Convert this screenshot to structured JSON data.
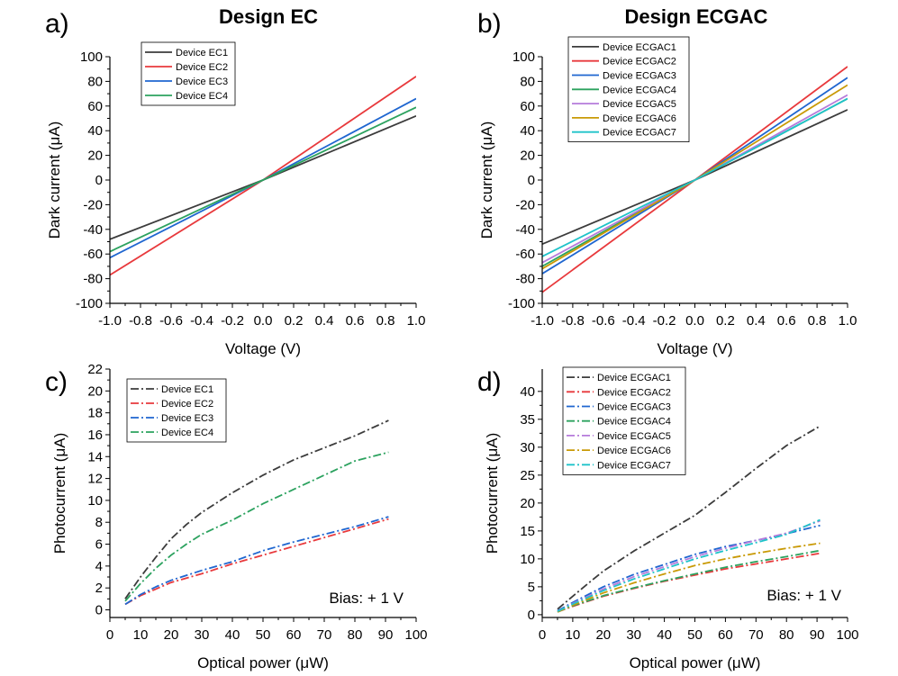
{
  "chart_data": [
    {
      "id": "a",
      "type": "line",
      "panel_label": "a)",
      "title": "Design EC",
      "xlabel": "Voltage (V)",
      "ylabel": "Dark current (μA)",
      "xlim": [
        -1.0,
        1.0
      ],
      "ylim": [
        -100,
        100
      ],
      "xticks": [
        -1.0,
        -0.8,
        -0.6,
        -0.4,
        -0.2,
        0.0,
        0.2,
        0.4,
        0.6,
        0.8,
        1.0
      ],
      "xtick_labels": [
        "-1.0",
        "-0.8",
        "-0.6",
        "-0.4",
        "-0.2",
        "0.0",
        "0.2",
        "0.4",
        "0.6",
        "0.8",
        "1.0"
      ],
      "yticks": [
        -100,
        -80,
        -60,
        -40,
        -20,
        0,
        20,
        40,
        60,
        80,
        100
      ],
      "ytick_labels": [
        "-100",
        "-80",
        "-60",
        "-40",
        "-20",
        "0",
        "20",
        "40",
        "60",
        "80",
        "100"
      ],
      "legend_position": "top-left",
      "series": [
        {
          "name": "Device EC1",
          "color": "#3c3c3c",
          "dash": "solid",
          "x": [
            -1.0,
            0.0,
            1.0
          ],
          "y": [
            -48,
            0,
            52
          ]
        },
        {
          "name": "Device EC2",
          "color": "#e8393c",
          "dash": "solid",
          "x": [
            -1.0,
            0.0,
            1.0
          ],
          "y": [
            -77,
            0,
            84
          ]
        },
        {
          "name": "Device EC3",
          "color": "#1f66d0",
          "dash": "solid",
          "x": [
            -1.0,
            0.0,
            1.0
          ],
          "y": [
            -63,
            0,
            66
          ]
        },
        {
          "name": "Device EC4",
          "color": "#2ca25f",
          "dash": "solid",
          "x": [
            -1.0,
            0.0,
            1.0
          ],
          "y": [
            -58,
            0,
            59
          ]
        }
      ]
    },
    {
      "id": "b",
      "type": "line",
      "panel_label": "b)",
      "title": "Design ECGAC",
      "xlabel": "Voltage (V)",
      "ylabel": "Dark current (μA)",
      "xlim": [
        -1.0,
        1.0
      ],
      "ylim": [
        -100,
        100
      ],
      "xticks": [
        -1.0,
        -0.8,
        -0.6,
        -0.4,
        -0.2,
        0.0,
        0.2,
        0.4,
        0.6,
        0.8,
        1.0
      ],
      "xtick_labels": [
        "-1.0",
        "-0.8",
        "-0.6",
        "-0.4",
        "-0.2",
        "0.0",
        "0.2",
        "0.4",
        "0.6",
        "0.8",
        "1.0"
      ],
      "yticks": [
        -100,
        -80,
        -60,
        -40,
        -20,
        0,
        20,
        40,
        60,
        80,
        100
      ],
      "ytick_labels": [
        "-100",
        "-80",
        "-60",
        "-40",
        "-20",
        "0",
        "20",
        "40",
        "60",
        "80",
        "100"
      ],
      "legend_position": "top-left",
      "series": [
        {
          "name": "Device ECGAC1",
          "color": "#3c3c3c",
          "dash": "solid",
          "x": [
            -1.0,
            0.0,
            1.0
          ],
          "y": [
            -52,
            0,
            57
          ]
        },
        {
          "name": "Device ECGAC2",
          "color": "#e8393c",
          "dash": "solid",
          "x": [
            -1.0,
            0.0,
            1.0
          ],
          "y": [
            -91,
            0,
            92
          ]
        },
        {
          "name": "Device ECGAC3",
          "color": "#1f66d0",
          "dash": "solid",
          "x": [
            -1.0,
            0.0,
            1.0
          ],
          "y": [
            -76,
            0,
            83
          ]
        },
        {
          "name": "Device ECGAC4",
          "color": "#2ca25f",
          "dash": "solid",
          "x": [
            -1.0,
            0.0,
            1.0
          ],
          "y": [
            -70,
            0,
            66
          ]
        },
        {
          "name": "Device ECGAC5",
          "color": "#b57bdb",
          "dash": "solid",
          "x": [
            -1.0,
            0.0,
            1.0
          ],
          "y": [
            -67,
            0,
            69
          ]
        },
        {
          "name": "Device ECGAC6",
          "color": "#c99a06",
          "dash": "solid",
          "x": [
            -1.0,
            0.0,
            1.0
          ],
          "y": [
            -72,
            0,
            77
          ]
        },
        {
          "name": "Device ECGAC7",
          "color": "#1fc3c9",
          "dash": "solid",
          "x": [
            -1.0,
            0.0,
            1.0
          ],
          "y": [
            -62,
            0,
            66
          ]
        }
      ]
    },
    {
      "id": "c",
      "type": "line",
      "panel_label": "c)",
      "title": "",
      "xlabel": "Optical power (μW)",
      "ylabel": "Photocurrent (μA)",
      "xlim": [
        0,
        100
      ],
      "ylim": [
        -0.7,
        22
      ],
      "xticks": [
        0,
        10,
        20,
        30,
        40,
        50,
        60,
        70,
        80,
        90,
        100
      ],
      "xtick_labels": [
        "0",
        "10",
        "20",
        "30",
        "40",
        "50",
        "60",
        "70",
        "80",
        "90",
        "100"
      ],
      "yticks": [
        0,
        2,
        4,
        6,
        8,
        10,
        12,
        14,
        16,
        18,
        20,
        22
      ],
      "ytick_labels": [
        "0",
        "2",
        "4",
        "6",
        "8",
        "10",
        "12",
        "14",
        "16",
        "18",
        "20",
        "22"
      ],
      "legend_position": "top-left",
      "annotation": "Bias: + 1 V",
      "series": [
        {
          "name": "Device EC1",
          "color": "#3c3c3c",
          "dash": "dashdot",
          "x": [
            5,
            10,
            15,
            20,
            25,
            30,
            40,
            50,
            60,
            70,
            80,
            91
          ],
          "y": [
            1.0,
            3.0,
            4.8,
            6.5,
            7.8,
            8.9,
            10.7,
            12.3,
            13.7,
            14.8,
            15.9,
            17.3
          ]
        },
        {
          "name": "Device EC2",
          "color": "#e8393c",
          "dash": "dashdot",
          "x": [
            5,
            10,
            15,
            20,
            30,
            40,
            50,
            60,
            70,
            80,
            91
          ],
          "y": [
            0.5,
            1.3,
            1.9,
            2.5,
            3.3,
            4.2,
            5.0,
            5.8,
            6.6,
            7.4,
            8.3
          ]
        },
        {
          "name": "Device EC3",
          "color": "#1f66d0",
          "dash": "dashdot",
          "x": [
            5,
            10,
            15,
            20,
            30,
            40,
            50,
            60,
            70,
            80,
            91
          ],
          "y": [
            0.5,
            1.4,
            2.1,
            2.7,
            3.6,
            4.4,
            5.4,
            6.2,
            6.9,
            7.6,
            8.5
          ]
        },
        {
          "name": "Device EC4",
          "color": "#2ca25f",
          "dash": "dashdot",
          "x": [
            5,
            10,
            15,
            20,
            25,
            30,
            40,
            50,
            60,
            70,
            80,
            91
          ],
          "y": [
            0.8,
            2.4,
            3.8,
            5.0,
            6.0,
            6.9,
            8.2,
            9.7,
            11.0,
            12.3,
            13.6,
            14.4
          ]
        }
      ]
    },
    {
      "id": "d",
      "type": "line",
      "panel_label": "d)",
      "title": "",
      "xlabel": "Optical power (μW)",
      "ylabel": "Photocurrent (μA)",
      "xlim": [
        0,
        100
      ],
      "ylim": [
        -0.5,
        44
      ],
      "xticks": [
        0,
        10,
        20,
        30,
        40,
        50,
        60,
        70,
        80,
        90,
        100
      ],
      "xtick_labels": [
        "0",
        "10",
        "20",
        "30",
        "40",
        "50",
        "60",
        "70",
        "80",
        "90",
        "100"
      ],
      "yticks": [
        0,
        5,
        10,
        15,
        20,
        25,
        30,
        35,
        40
      ],
      "ytick_labels": [
        "0",
        "5",
        "10",
        "15",
        "20",
        "25",
        "30",
        "35",
        "40"
      ],
      "legend_position": "top-left",
      "annotation": "Bias: + 1 V",
      "series": [
        {
          "name": "Device ECGAC1",
          "color": "#3c3c3c",
          "dash": "dashdot",
          "x": [
            5,
            10,
            15,
            20,
            30,
            40,
            50,
            60,
            70,
            80,
            91
          ],
          "y": [
            1.0,
            3.3,
            5.6,
            7.8,
            11.4,
            14.6,
            17.8,
            21.9,
            26.2,
            30.3,
            33.8
          ]
        },
        {
          "name": "Device ECGAC2",
          "color": "#e8393c",
          "dash": "dashdot",
          "x": [
            5,
            10,
            20,
            30,
            40,
            50,
            60,
            70,
            80,
            91
          ],
          "y": [
            0.5,
            1.5,
            3.3,
            4.7,
            6.0,
            7.1,
            8.2,
            9.1,
            10.0,
            11.0
          ]
        },
        {
          "name": "Device ECGAC3",
          "color": "#1f66d0",
          "dash": "dashdot",
          "x": [
            5,
            10,
            20,
            30,
            40,
            50,
            60,
            70,
            80,
            91
          ],
          "y": [
            0.7,
            2.2,
            5.0,
            7.2,
            9.0,
            10.8,
            12.2,
            13.3,
            14.5,
            16.0
          ]
        },
        {
          "name": "Device ECGAC4",
          "color": "#2ca25f",
          "dash": "dashdot",
          "x": [
            5,
            10,
            20,
            30,
            40,
            50,
            60,
            70,
            80,
            91
          ],
          "y": [
            0.5,
            1.6,
            3.4,
            4.8,
            6.1,
            7.3,
            8.5,
            9.5,
            10.4,
            11.5
          ]
        },
        {
          "name": "Device ECGAC5",
          "color": "#b57bdb",
          "dash": "dashdot",
          "x": [
            5,
            10,
            20,
            30,
            40,
            50,
            60,
            70,
            80,
            91
          ],
          "y": [
            0.6,
            2.0,
            4.6,
            6.8,
            8.6,
            10.4,
            11.9,
            13.3,
            14.6,
            16.8
          ]
        },
        {
          "name": "Device ECGAC6",
          "color": "#c99a06",
          "dash": "dashdot",
          "x": [
            5,
            10,
            20,
            30,
            40,
            50,
            60,
            70,
            80,
            91
          ],
          "y": [
            0.5,
            1.7,
            3.9,
            5.7,
            7.3,
            8.8,
            10.0,
            11.0,
            11.9,
            12.8
          ]
        },
        {
          "name": "Device ECGAC7",
          "color": "#1fc3c9",
          "dash": "dashdot",
          "x": [
            5,
            10,
            20,
            30,
            40,
            50,
            60,
            70,
            80,
            91
          ],
          "y": [
            0.6,
            1.9,
            4.3,
            6.4,
            8.2,
            10.0,
            11.5,
            12.9,
            14.4,
            17.0
          ]
        }
      ]
    }
  ]
}
